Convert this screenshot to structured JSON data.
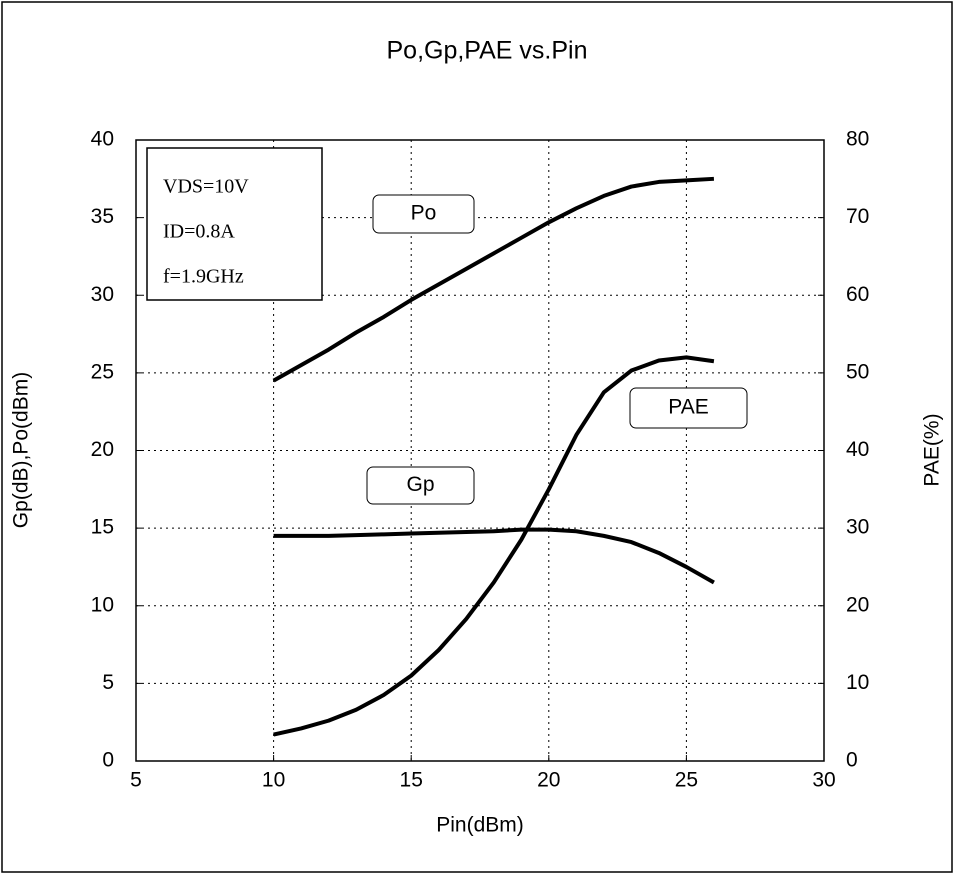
{
  "chart_data": {
    "type": "line",
    "title": "Po,Gp,PAE vs.Pin",
    "x_label": "Pin(dBm)",
    "y_label": "Gp(dB),Po(dBm)",
    "y2_label": "PAE(%)",
    "x": [
      10,
      11,
      12,
      13,
      14,
      15,
      16,
      17,
      18,
      19,
      20,
      21,
      22,
      23,
      24,
      25,
      26
    ],
    "series": [
      {
        "name": "Po",
        "color": "#000000",
        "values": [
          24.5,
          25.5,
          26.5,
          27.6,
          28.6,
          29.7,
          30.7,
          31.7,
          32.7,
          33.7,
          34.7,
          35.6,
          36.4,
          37.0,
          37.3,
          37.4,
          37.5
        ]
      },
      {
        "name": "Gp",
        "color": "#000000",
        "values": [
          14.5,
          14.5,
          14.5,
          14.55,
          14.6,
          14.65,
          14.7,
          14.75,
          14.8,
          14.9,
          14.9,
          14.8,
          14.5,
          14.1,
          13.4,
          12.5,
          11.5
        ]
      },
      {
        "name": "PAE",
        "color": "#000000",
        "axis": "y2",
        "values": [
          3.4,
          4.2,
          5.2,
          6.6,
          8.5,
          11,
          14.3,
          18.3,
          23,
          28.5,
          35,
          42,
          47.5,
          50.3,
          51.6,
          52,
          51.5
        ]
      }
    ],
    "conditions": [
      "VDS=10V",
      "ID=0.8A",
      "f=1.9GHz"
    ],
    "xlim": [
      5,
      30
    ],
    "xticks": [
      5,
      10,
      15,
      20,
      25,
      30
    ],
    "ylim": [
      0,
      40
    ],
    "yticks": [
      0,
      5,
      10,
      15,
      20,
      25,
      30,
      35,
      40
    ],
    "y2lim": [
      0,
      80
    ],
    "y2ticks": [
      0,
      10,
      20,
      30,
      40,
      50,
      60,
      70,
      80
    ],
    "grid": true
  }
}
